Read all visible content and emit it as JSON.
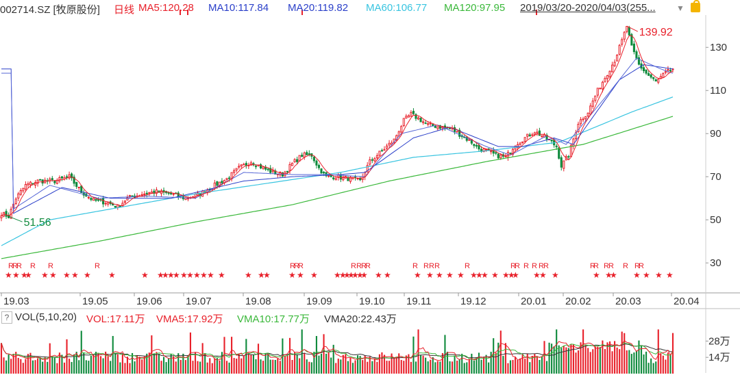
{
  "header": {
    "symbol": "002714.SZ [牧原股份]",
    "period": "日线",
    "ma5": "MA5:120.28",
    "ma10": "MA10:117.84",
    "ma20": "MA20:119.82",
    "ma60": "MA60:106.77",
    "ma120": "MA120:97.95",
    "range": "2019/03/20-2020/04/03(255..."
  },
  "volume_header": {
    "title": "VOL(5,10,20)",
    "vol": "VOL:17.11万",
    "vma5": "VMA5:17.92万",
    "vma10": "VMA10:17.77万",
    "vma20": "VMA20:22.43万"
  },
  "colors": {
    "up": "#e8202a",
    "down": "#0f8a3c",
    "ma5": "#e8202a",
    "ma10": "#2a3fc9",
    "ma20": "#2a3fc9",
    "ma60": "#38c4e0",
    "ma120": "#3ab83a",
    "text": "#333333"
  },
  "chart_data": {
    "type": "candlestick",
    "price_axis": {
      "ylim": [
        18,
        145
      ],
      "ticks": [
        30,
        50,
        70,
        90,
        110,
        130
      ]
    },
    "x_labels": [
      "19.03",
      "19.05",
      "19.06",
      "19.07",
      "19.08",
      "19.09",
      "19.10",
      "19.11",
      "19.12",
      "20.01",
      "20.02",
      "20.03",
      "20.04"
    ],
    "annotations": {
      "high": "139.92",
      "low": "51.56"
    },
    "volume_axis": {
      "ticks": [
        "28万",
        "14万"
      ]
    },
    "price_anchors": [
      [
        0,
        53
      ],
      [
        3,
        51.6
      ],
      [
        6,
        60
      ],
      [
        10,
        66
      ],
      [
        15,
        68
      ],
      [
        22,
        68
      ],
      [
        28,
        70
      ],
      [
        33,
        63
      ],
      [
        38,
        59
      ],
      [
        44,
        58
      ],
      [
        48,
        56
      ],
      [
        52,
        60
      ],
      [
        58,
        62
      ],
      [
        64,
        63
      ],
      [
        70,
        62
      ],
      [
        76,
        60
      ],
      [
        82,
        62
      ],
      [
        88,
        66
      ],
      [
        93,
        69
      ],
      [
        98,
        74
      ],
      [
        103,
        77
      ],
      [
        108,
        74
      ],
      [
        112,
        72
      ],
      [
        116,
        71
      ],
      [
        120,
        76
      ],
      [
        124,
        80
      ],
      [
        128,
        80
      ],
      [
        131,
        74
      ],
      [
        134,
        70
      ],
      [
        138,
        70
      ],
      [
        144,
        69
      ],
      [
        148,
        68
      ],
      [
        152,
        77
      ],
      [
        157,
        82
      ],
      [
        162,
        87
      ],
      [
        166,
        96
      ],
      [
        169,
        99
      ],
      [
        172,
        97
      ],
      [
        176,
        94
      ],
      [
        182,
        93
      ],
      [
        186,
        92
      ],
      [
        190,
        89
      ],
      [
        194,
        86
      ],
      [
        197,
        83
      ],
      [
        200,
        82
      ],
      [
        204,
        80
      ],
      [
        208,
        79
      ],
      [
        212,
        85
      ],
      [
        216,
        88
      ],
      [
        220,
        91
      ],
      [
        223,
        89
      ],
      [
        226,
        87
      ],
      [
        229,
        84
      ],
      [
        231,
        75
      ],
      [
        234,
        80
      ],
      [
        238,
        95
      ],
      [
        242,
        100
      ],
      [
        246,
        110
      ],
      [
        250,
        118
      ],
      [
        253,
        124
      ],
      [
        256,
        133
      ],
      [
        258,
        139.9
      ],
      [
        260,
        130
      ],
      [
        263,
        122
      ],
      [
        266,
        118
      ],
      [
        270,
        114
      ],
      [
        274,
        118
      ],
      [
        277,
        120
      ]
    ],
    "ma_anchors": {
      "ma10": [
        [
          5,
          55
        ],
        [
          20,
          66
        ],
        [
          40,
          60
        ],
        [
          60,
          61
        ],
        [
          80,
          60
        ],
        [
          100,
          72
        ],
        [
          120,
          71
        ],
        [
          135,
          71
        ],
        [
          150,
          70
        ],
        [
          165,
          90
        ],
        [
          180,
          94
        ],
        [
          200,
          84
        ],
        [
          210,
          80
        ],
        [
          225,
          89
        ],
        [
          233,
          85
        ],
        [
          250,
          108
        ],
        [
          262,
          125
        ],
        [
          272,
          120
        ],
        [
          277,
          118
        ]
      ],
      "ma20": [
        [
          5,
          53
        ],
        [
          25,
          65
        ],
        [
          45,
          60
        ],
        [
          70,
          60
        ],
        [
          100,
          68
        ],
        [
          120,
          70
        ],
        [
          140,
          71
        ],
        [
          150,
          72
        ],
        [
          170,
          88
        ],
        [
          185,
          93
        ],
        [
          205,
          84
        ],
        [
          215,
          84
        ],
        [
          228,
          88
        ],
        [
          236,
          85
        ],
        [
          255,
          115
        ],
        [
          265,
          122
        ],
        [
          277,
          120
        ]
      ],
      "ma60": [
        [
          0,
          38
        ],
        [
          20,
          50
        ],
        [
          50,
          56
        ],
        [
          80,
          62
        ],
        [
          110,
          67
        ],
        [
          140,
          72
        ],
        [
          170,
          79
        ],
        [
          200,
          82
        ],
        [
          230,
          86
        ],
        [
          260,
          100
        ],
        [
          277,
          107
        ]
      ],
      "ma120": [
        [
          0,
          32
        ],
        [
          40,
          40
        ],
        [
          80,
          49
        ],
        [
          120,
          57
        ],
        [
          160,
          68
        ],
        [
          200,
          77
        ],
        [
          240,
          85
        ],
        [
          277,
          98
        ]
      ]
    }
  }
}
